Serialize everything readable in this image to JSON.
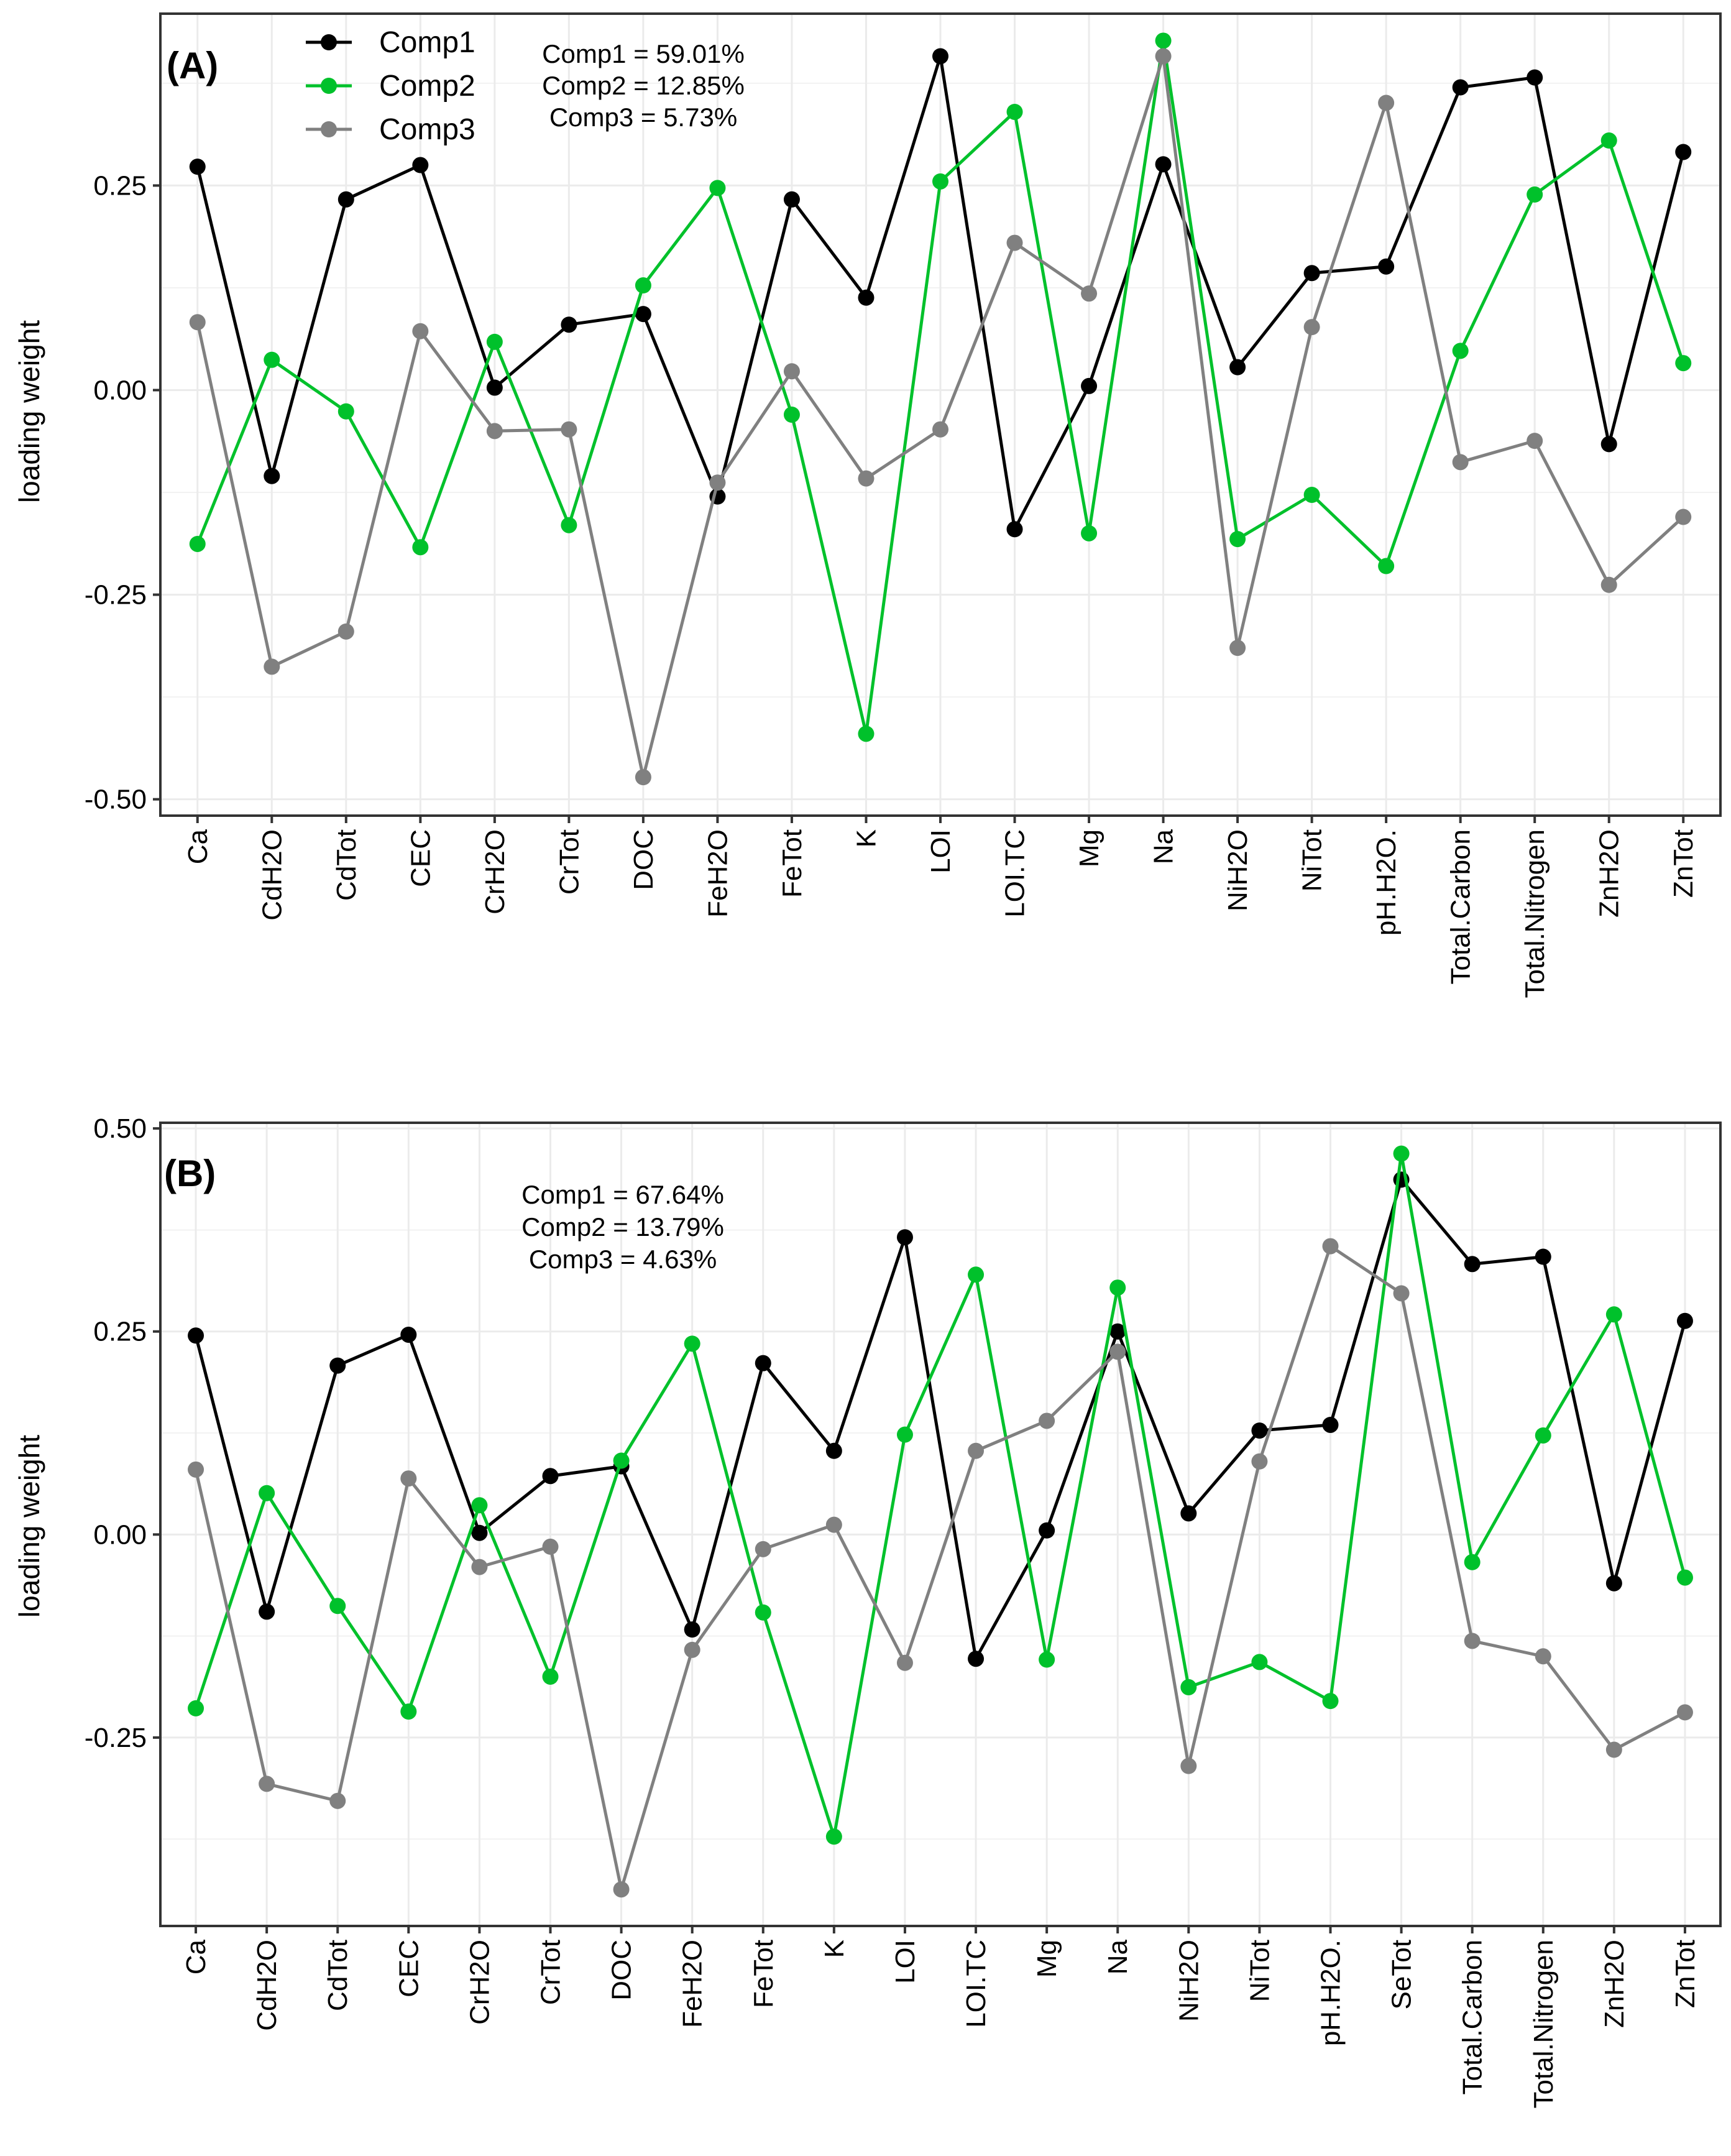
{
  "figure": {
    "colors": {
      "comp1": "#000000",
      "comp2": "#00c12b",
      "comp3": "#808080",
      "grid": "#ebebeb",
      "border": "#333333"
    }
  },
  "chart_data": [
    {
      "type": "line",
      "panel_label": "(A)",
      "ylabel": "loading weight",
      "xlabel": "",
      "ylim": [
        -0.52,
        0.46
      ],
      "yticks": [
        -0.5,
        -0.25,
        0.0,
        0.25
      ],
      "ytick_labels": [
        "-0.50",
        "-0.25",
        "0.00",
        "0.25"
      ],
      "grid": true,
      "legend_position": "top-left",
      "legend": [
        "Comp1",
        "Comp2",
        "Comp3"
      ],
      "annotation": [
        "Comp1 = 59.01%",
        "Comp2 = 12.85%",
        "Comp3 = 5.73%"
      ],
      "categories": [
        "Ca",
        "CdH2O",
        "CdTot",
        "CEC",
        "CrH2O",
        "CrTot",
        "DOC",
        "FeH2O",
        "FeTot",
        "K",
        "LOI",
        "LOI.TC",
        "Mg",
        "Na",
        "NiH2O",
        "NiTot",
        "pH.H2O.",
        "Total.Carbon",
        "Total.Nitrogen",
        "ZnH2O",
        "ZnTot"
      ],
      "series": [
        {
          "name": "Comp1",
          "color": "#000000",
          "values": [
            0.273,
            -0.105,
            0.233,
            0.275,
            0.003,
            0.08,
            0.093,
            -0.13,
            0.233,
            0.113,
            0.408,
            -0.17,
            0.005,
            0.276,
            0.028,
            0.143,
            0.151,
            0.37,
            0.382,
            -0.066,
            0.291
          ]
        },
        {
          "name": "Comp2",
          "color": "#00c12b",
          "values": [
            -0.188,
            0.037,
            -0.026,
            -0.192,
            0.059,
            -0.165,
            0.128,
            0.247,
            -0.03,
            -0.42,
            0.255,
            0.34,
            -0.175,
            0.427,
            -0.182,
            -0.128,
            -0.215,
            0.048,
            0.239,
            0.305,
            0.033
          ]
        },
        {
          "name": "Comp3",
          "color": "#808080",
          "values": [
            0.083,
            -0.338,
            -0.295,
            0.072,
            -0.05,
            -0.048,
            -0.473,
            -0.113,
            0.023,
            -0.108,
            -0.048,
            0.18,
            0.118,
            0.408,
            -0.315,
            0.077,
            0.351,
            -0.088,
            -0.062,
            -0.238,
            -0.155
          ]
        }
      ]
    },
    {
      "type": "line",
      "panel_label": "(B)",
      "ylabel": "loading weight",
      "xlabel": "",
      "ylim": [
        -0.482,
        0.507
      ],
      "yticks": [
        -0.25,
        0.0,
        0.25,
        0.5
      ],
      "ytick_labels": [
        "-0.25",
        "0.00",
        "0.25",
        "0.50"
      ],
      "grid": true,
      "legend_position": "none",
      "legend": [],
      "annotation": [
        "Comp1 = 67.64%",
        "Comp2 = 13.79%",
        "Comp3 = 4.63%"
      ],
      "categories": [
        "Ca",
        "CdH2O",
        "CdTot",
        "CEC",
        "CrH2O",
        "CrTot",
        "DOC",
        "FeH2O",
        "FeTot",
        "K",
        "LOI",
        "LOI.TC",
        "Mg",
        "Na",
        "NiH2O",
        "NiTot",
        "pH.H2O.",
        "SeTot",
        "Total.Carbon",
        "Total.Nitrogen",
        "ZnH2O",
        "ZnTot"
      ],
      "series": [
        {
          "name": "Comp1",
          "color": "#000000",
          "values": [
            0.245,
            -0.095,
            0.208,
            0.246,
            0.002,
            0.072,
            0.084,
            -0.117,
            0.211,
            0.103,
            0.366,
            -0.153,
            0.005,
            0.25,
            0.026,
            0.128,
            0.135,
            0.437,
            0.333,
            0.342,
            -0.06,
            0.263
          ]
        },
        {
          "name": "Comp2",
          "color": "#00c12b",
          "values": [
            -0.214,
            0.051,
            -0.088,
            -0.218,
            0.036,
            -0.175,
            0.091,
            0.235,
            -0.096,
            -0.372,
            0.123,
            0.32,
            -0.154,
            0.304,
            -0.188,
            -0.157,
            -0.205,
            0.469,
            -0.034,
            0.122,
            0.271,
            -0.053
          ]
        },
        {
          "name": "Comp3",
          "color": "#808080",
          "values": [
            0.08,
            -0.307,
            -0.328,
            0.069,
            -0.04,
            -0.015,
            -0.437,
            -0.142,
            -0.018,
            0.012,
            -0.158,
            0.103,
            0.14,
            0.225,
            -0.285,
            0.09,
            0.355,
            0.297,
            -0.131,
            -0.15,
            -0.265,
            -0.219
          ]
        }
      ]
    }
  ]
}
